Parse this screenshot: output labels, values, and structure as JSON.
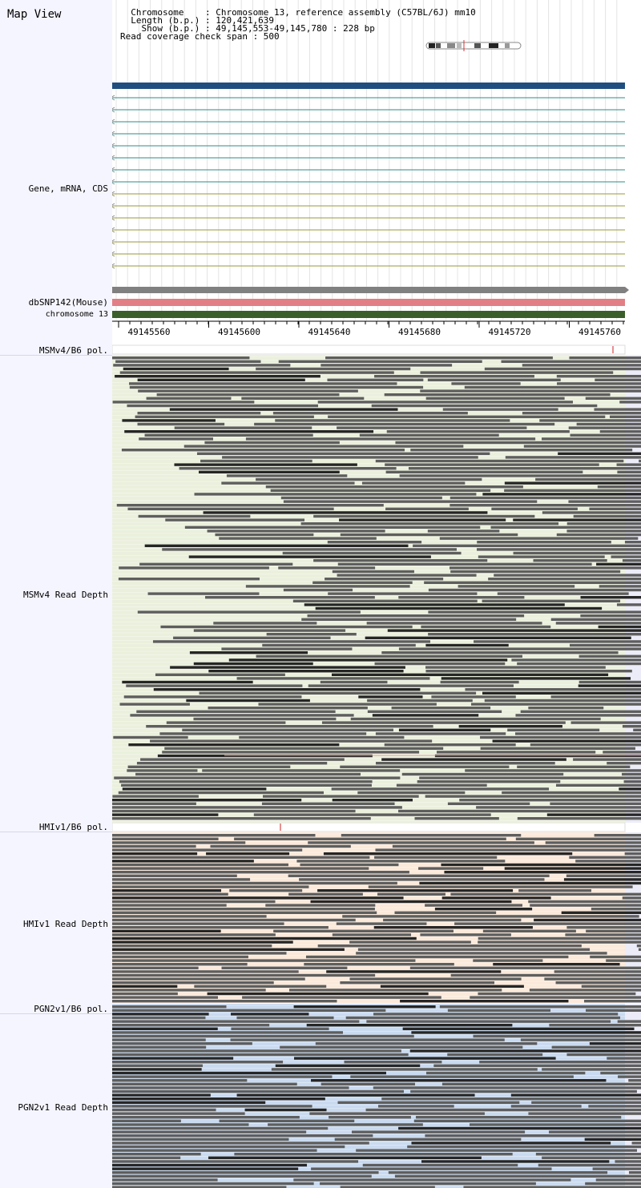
{
  "map": {
    "title": "Map View",
    "info_lines": [
      "  Chromosome    : Chromosome 13, reference assembly (C57BL/6J) mm10",
      "  Length (b.p.) : 120,421,639",
      "    Show (b.p.) : 49,145,553-49,145,780 : 228 bp",
      "Read coverage check span : 500"
    ]
  },
  "tracks": {
    "gene_label": "Gene, mRNA, CDS",
    "dbsnp_label": "dbSNP142(Mouse)",
    "chromosome_label": "chromosome 13",
    "msm_pol_label": "MSMv4/B6 pol.",
    "msm_depth_label": "MSMv4 Read Depth",
    "hmi_pol_label": "HMIv1/B6 pol.",
    "hmi_depth_label": "HMIv1 Read Depth",
    "pgn_pol_label": "PGN2v1/B6 pol.",
    "pgn_depth_label": "PGN2v1 Read Depth"
  },
  "ruler": {
    "ticks": [
      "49145560",
      "49145600",
      "49145640",
      "49145680",
      "49145720",
      "49145760"
    ]
  },
  "colors": {
    "sidebar_bg": "#f5f5ff",
    "gene_bar": "#1f4e7f",
    "mrna_teal": "#2e8b8b",
    "mrna_olive": "#9a9a3a",
    "snp_bar": "#808080",
    "snp_pink": "#e27e86",
    "chromosome_bar": "#3a5f2a",
    "msm_bg": "#eaf0dc",
    "hmi_bg": "#fbe9da",
    "pgn_bg": "#c9daf0",
    "read_gray": "#5e5e5e",
    "read_dark": "#262626",
    "pol_marker": "#cc2222"
  }
}
